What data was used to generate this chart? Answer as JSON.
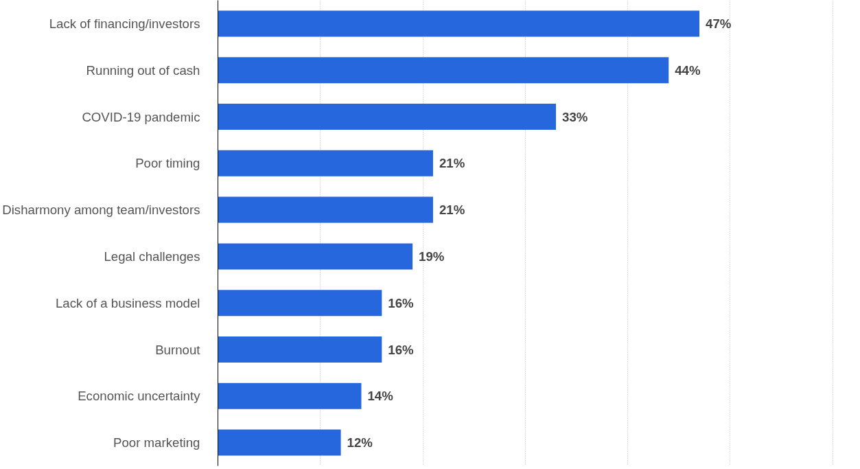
{
  "chart_data": {
    "type": "bar",
    "orientation": "horizontal",
    "categories": [
      "Lack of financing/investors",
      "Running out of cash",
      "COVID-19 pandemic",
      "Poor timing",
      "Disharmony among team/investors",
      "Legal challenges",
      "Lack of a business model",
      "Burnout",
      "Economic uncertainty",
      "Poor marketing"
    ],
    "values": [
      47,
      44,
      33,
      21,
      21,
      19,
      16,
      16,
      14,
      12
    ],
    "value_labels": [
      "47%",
      "44%",
      "33%",
      "21%",
      "21%",
      "19%",
      "16%",
      "16%",
      "14%",
      "12%"
    ],
    "color": "#2767de",
    "xticks": [
      {
        "value": 0,
        "label": null
      },
      {
        "value": 10,
        "label": null
      },
      {
        "value": 20,
        "label": null
      },
      {
        "value": 30,
        "label": null
      },
      {
        "value": 40,
        "label": null
      },
      {
        "value": 50,
        "label": null
      },
      {
        "value": 60,
        "label": null
      }
    ],
    "grid": "x",
    "tick_labels": "y"
  }
}
